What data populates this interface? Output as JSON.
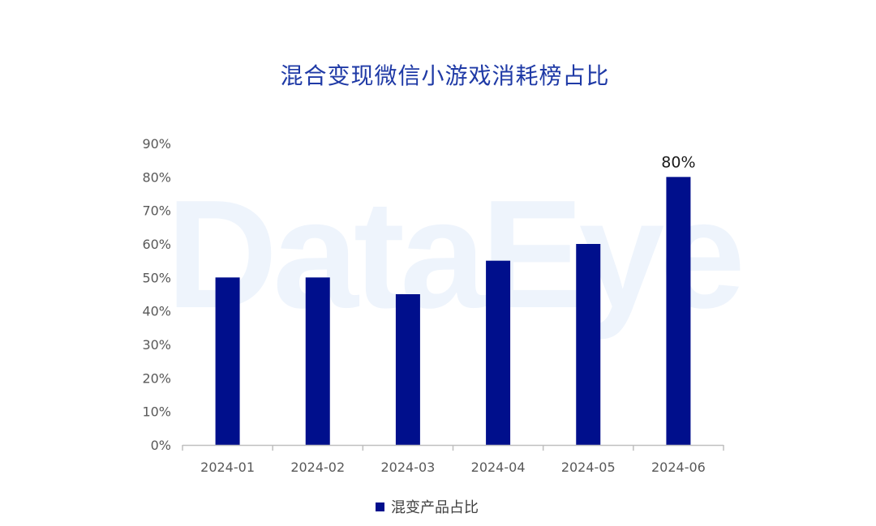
{
  "watermark": "DataEye",
  "chart_data": {
    "type": "bar",
    "title": "混合变现微信小游戏消耗榜占比",
    "categories": [
      "2024-01",
      "2024-02",
      "2024-03",
      "2024-04",
      "2024-05",
      "2024-06"
    ],
    "series": [
      {
        "name": "混变产品占比",
        "values": [
          50,
          50,
          45,
          55,
          60,
          80
        ],
        "color": "#000f8c"
      }
    ],
    "ylim": [
      0,
      90
    ],
    "yticks": [
      0,
      10,
      20,
      30,
      40,
      50,
      60,
      70,
      80,
      90
    ],
    "ytick_labels": [
      "0%",
      "10%",
      "20%",
      "30%",
      "40%",
      "50%",
      "60%",
      "70%",
      "80%",
      "90%"
    ],
    "data_labels": [
      {
        "index": 5,
        "text": "80%"
      }
    ],
    "grid": false,
    "legend": "bottom-center",
    "xlabel": "",
    "ylabel": ""
  }
}
